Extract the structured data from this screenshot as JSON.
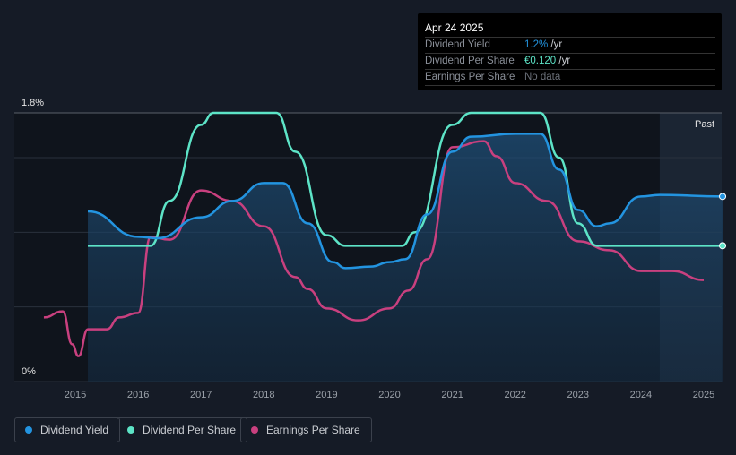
{
  "chart_data": {
    "type": "line",
    "ylabel_ticks": [
      "1.8%",
      "0%"
    ],
    "ylim": [
      0,
      1.8
    ],
    "xlim": [
      2014.25,
      2025.3
    ],
    "x_ticks": [
      "2015",
      "2016",
      "2017",
      "2018",
      "2019",
      "2020",
      "2021",
      "2022",
      "2023",
      "2024",
      "2025"
    ],
    "past_label": "Past",
    "past_start": 2024.3,
    "series": [
      {
        "name": "Dividend Yield",
        "color": "#2394e0",
        "fill": true,
        "points": [
          [
            2015.2,
            1.14
          ],
          [
            2016,
            0.97
          ],
          [
            2016.3,
            0.96
          ],
          [
            2017,
            1.1
          ],
          [
            2017.5,
            1.21
          ],
          [
            2018,
            1.33
          ],
          [
            2018.3,
            1.33
          ],
          [
            2018.7,
            1.06
          ],
          [
            2019.1,
            0.8
          ],
          [
            2019.3,
            0.76
          ],
          [
            2019.7,
            0.77
          ],
          [
            2020,
            0.8
          ],
          [
            2020.25,
            0.82
          ],
          [
            2020.6,
            1.12
          ],
          [
            2021,
            1.54
          ],
          [
            2021.3,
            1.64
          ],
          [
            2022,
            1.66
          ],
          [
            2022.4,
            1.66
          ],
          [
            2022.7,
            1.42
          ],
          [
            2023,
            1.15
          ],
          [
            2023.3,
            1.04
          ],
          [
            2023.5,
            1.06
          ],
          [
            2024,
            1.24
          ],
          [
            2024.3,
            1.25
          ],
          [
            2025.3,
            1.24
          ]
        ]
      },
      {
        "name": "Dividend Per Share",
        "color": "#5de4c7",
        "points": [
          [
            2015.2,
            0.91
          ],
          [
            2016.2,
            0.91
          ],
          [
            2016.5,
            1.21
          ],
          [
            2017,
            1.72
          ],
          [
            2017.2,
            1.8
          ],
          [
            2018.2,
            1.8
          ],
          [
            2018.5,
            1.54
          ],
          [
            2019,
            0.98
          ],
          [
            2019.3,
            0.91
          ],
          [
            2020.2,
            0.91
          ],
          [
            2020.4,
            1.0
          ],
          [
            2021,
            1.72
          ],
          [
            2021.3,
            1.8
          ],
          [
            2022.4,
            1.8
          ],
          [
            2022.7,
            1.5
          ],
          [
            2023,
            1.06
          ],
          [
            2023.3,
            0.91
          ],
          [
            2025.3,
            0.91
          ]
        ]
      },
      {
        "name": "Earnings Per Share",
        "color": "#c9407f",
        "points": [
          [
            2014.5,
            0.43
          ],
          [
            2014.8,
            0.47
          ],
          [
            2014.95,
            0.25
          ],
          [
            2015.05,
            0.17
          ],
          [
            2015.2,
            0.35
          ],
          [
            2015.5,
            0.35
          ],
          [
            2015.7,
            0.43
          ],
          [
            2016,
            0.46
          ],
          [
            2016.2,
            0.97
          ],
          [
            2016.5,
            0.95
          ],
          [
            2017,
            1.28
          ],
          [
            2017.5,
            1.21
          ],
          [
            2018,
            1.04
          ],
          [
            2018.5,
            0.7
          ],
          [
            2018.7,
            0.62
          ],
          [
            2019,
            0.49
          ],
          [
            2019.5,
            0.41
          ],
          [
            2020,
            0.49
          ],
          [
            2020.3,
            0.61
          ],
          [
            2020.6,
            0.82
          ],
          [
            2021,
            1.57
          ],
          [
            2021.5,
            1.61
          ],
          [
            2021.7,
            1.51
          ],
          [
            2022,
            1.33
          ],
          [
            2022.5,
            1.21
          ],
          [
            2023,
            0.94
          ],
          [
            2023.5,
            0.88
          ],
          [
            2024,
            0.74
          ],
          [
            2024.5,
            0.74
          ],
          [
            2025,
            0.68
          ]
        ]
      }
    ]
  },
  "tooltip": {
    "date": "Apr 24 2025",
    "rows": [
      {
        "label": "Dividend Yield",
        "value": "1.2%",
        "unit": " /yr",
        "color": "#2394e0"
      },
      {
        "label": "Dividend Per Share",
        "value": "€0.120",
        "unit": " /yr",
        "color": "#5de4c7"
      },
      {
        "label": "Earnings Per Share",
        "value": "No data",
        "unit": "",
        "color": "#6b7079"
      }
    ]
  },
  "legend": [
    "Dividend Yield",
    "Dividend Per Share",
    "Earnings Per Share"
  ]
}
